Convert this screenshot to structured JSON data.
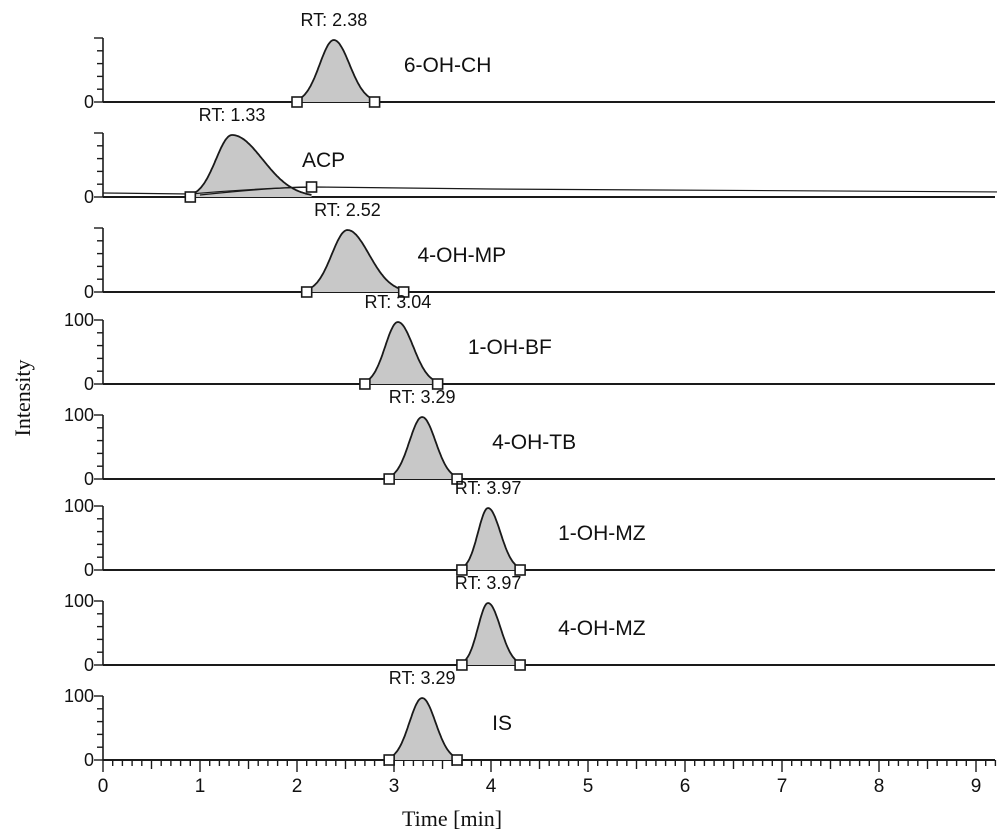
{
  "chart_data": {
    "type": "line",
    "xlabel": "Time [min]",
    "ylabel": "Intensity",
    "xlim": [
      0,
      9.3
    ],
    "x_ticks": [
      "0",
      "1",
      "2",
      "3",
      "4",
      "5",
      "6",
      "7",
      "8",
      "9"
    ],
    "ylim": [
      0,
      100
    ],
    "panels": [
      {
        "name": "6-OH-CH",
        "rt": 2.38,
        "rt_label": "RT: 2.38",
        "y_ticks": [
          "0"
        ],
        "peak_start": 2.0,
        "peak_end": 2.8
      },
      {
        "name": "ACP",
        "rt": 1.33,
        "rt_label": "RT: 1.33",
        "y_ticks": [
          "0"
        ],
        "peak_start": 0.9,
        "peak_end": 2.15
      },
      {
        "name": "4-OH-MP",
        "rt": 2.52,
        "rt_label": "RT: 2.52",
        "y_ticks": [
          "0"
        ],
        "peak_start": 2.1,
        "peak_end": 3.1
      },
      {
        "name": "1-OH-BF",
        "rt": 3.04,
        "rt_label": "RT: 3.04",
        "y_ticks": [
          "100",
          "0"
        ],
        "peak_start": 2.7,
        "peak_end": 3.45
      },
      {
        "name": "4-OH-TB",
        "rt": 3.29,
        "rt_label": "RT: 3.29",
        "y_ticks": [
          "100",
          "0"
        ],
        "peak_start": 2.95,
        "peak_end": 3.65
      },
      {
        "name": "1-OH-MZ",
        "rt": 3.97,
        "rt_label": "RT: 3.97",
        "y_ticks": [
          "100",
          "0"
        ],
        "peak_start": 3.7,
        "peak_end": 4.3
      },
      {
        "name": "4-OH-MZ",
        "rt": 3.97,
        "rt_label": "RT: 3.97",
        "y_ticks": [
          "100",
          "0"
        ],
        "peak_start": 3.7,
        "peak_end": 4.3
      },
      {
        "name": "IS",
        "rt": 3.29,
        "rt_label": "RT: 3.29",
        "y_ticks": [
          "100",
          "0"
        ],
        "peak_start": 2.95,
        "peak_end": 3.65
      }
    ]
  },
  "colors": {
    "peak_fill": "#c8c8c8",
    "line": "#1a1a1a"
  }
}
